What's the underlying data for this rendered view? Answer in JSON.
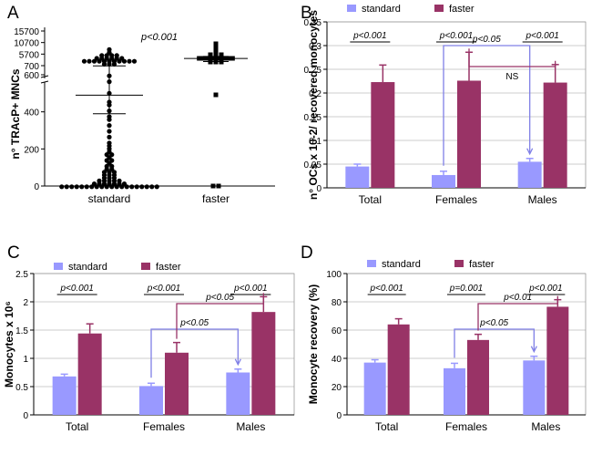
{
  "colors": {
    "standard": "#9999FF",
    "faster": "#993366",
    "blue_bracket": "#8080E6",
    "purple_bracket": "#993366"
  },
  "chart_data": [
    {
      "panel": "A",
      "type": "scatter",
      "ylabel": "n° TRAcP+ MNCs",
      "categories": [
        "standard",
        "faster"
      ],
      "annotation": "p<0.001",
      "y_ticks_lower": [
        "0",
        "200",
        "400",
        "600"
      ],
      "y_ticks_upper": [
        "700",
        "5700",
        "10700",
        "15700"
      ],
      "y_break": [
        600,
        700
      ],
      "standard_mean": 490,
      "standard_sd": [
        390,
        605
      ],
      "faster_mean": 3800,
      "faster_sd": [
        2500,
        4700
      ],
      "standard_points": [
        2,
        2,
        2,
        2,
        2,
        2,
        2,
        2,
        2,
        2,
        2,
        2,
        2,
        2,
        2,
        2,
        2,
        2,
        2,
        2,
        5,
        5,
        5,
        10,
        10,
        15,
        15,
        20,
        20,
        25,
        30,
        35,
        40,
        45,
        50,
        55,
        60,
        65,
        70,
        75,
        80,
        90,
        95,
        100,
        110,
        120,
        130,
        140,
        150,
        165,
        175,
        190,
        200,
        215,
        230,
        260,
        290,
        320,
        360,
        380,
        400,
        430,
        460,
        500,
        560,
        600,
        800,
        1200,
        1800,
        2000,
        2400,
        2600,
        2800,
        3000,
        3000,
        3000,
        3000,
        3000,
        3000,
        3200,
        3400,
        3600,
        3800,
        4000,
        4200,
        4400,
        4600,
        4800,
        5000,
        5500,
        6500,
        7200
      ],
      "faster_points": [
        0,
        0,
        500,
        2000,
        2500,
        3000,
        3200,
        3400,
        3500,
        3600,
        3700,
        3800,
        3900,
        4000,
        4100,
        4200,
        4300,
        4500,
        4700,
        5000,
        6000,
        7500,
        9000,
        10500
      ]
    },
    {
      "panel": "B",
      "type": "bar",
      "ylabel": "n° OCs x 10-2/ recovered monocytes",
      "categories": [
        "Total",
        "Females",
        "Males"
      ],
      "series": [
        {
          "name": "standard",
          "values": [
            0.045,
            0.027,
            0.055
          ],
          "errors": [
            0.005,
            0.008,
            0.007
          ]
        },
        {
          "name": "faster",
          "values": [
            0.223,
            0.226,
            0.222
          ],
          "errors": [
            0.036,
            0.06,
            0.038
          ]
        }
      ],
      "ylim": [
        0,
        0.35
      ],
      "y_ticks": [
        "0",
        "0.05",
        "0.1",
        "0.15",
        "0.2",
        "0.25",
        "0.3",
        "0.35"
      ],
      "annotations": [
        {
          "text": "p<0.001",
          "series_pair": "Total"
        },
        {
          "text": "p<0.001",
          "series_pair": "Females"
        },
        {
          "text": "p<0.001",
          "series_pair": "Males"
        },
        {
          "text": "p<0.05",
          "compare": "Females-standard vs Males-standard",
          "color": "blue"
        },
        {
          "text": "NS",
          "compare": "Females-faster vs Males-faster",
          "color": "purple"
        }
      ]
    },
    {
      "panel": "C",
      "type": "bar",
      "ylabel": "Monocytes x 10⁶",
      "categories": [
        "Total",
        "Females",
        "Males"
      ],
      "series": [
        {
          "name": "standard",
          "values": [
            0.68,
            0.51,
            0.75
          ],
          "errors": [
            0.04,
            0.05,
            0.06
          ]
        },
        {
          "name": "faster",
          "values": [
            1.44,
            1.1,
            1.82
          ],
          "errors": [
            0.17,
            0.18,
            0.27
          ]
        }
      ],
      "ylim": [
        0,
        2.5
      ],
      "y_ticks": [
        "0",
        "0.5",
        "1",
        "1.5",
        "2",
        "2.5"
      ],
      "annotations": [
        {
          "text": "p<0.001",
          "series_pair": "Total"
        },
        {
          "text": "p<0.001",
          "series_pair": "Females"
        },
        {
          "text": "p<0.001",
          "series_pair": "Males"
        },
        {
          "text": "p<0.05",
          "compare": "Females-standard vs Males-standard",
          "color": "blue"
        },
        {
          "text": "p<0.05",
          "compare": "Females-faster vs Males-faster",
          "color": "purple"
        }
      ]
    },
    {
      "panel": "D",
      "type": "bar",
      "ylabel": "Monocyte recovery (%)",
      "categories": [
        "Total",
        "Females",
        "Males"
      ],
      "series": [
        {
          "name": "standard",
          "values": [
            37,
            33,
            38.5
          ],
          "errors": [
            2,
            3.5,
            3
          ]
        },
        {
          "name": "faster",
          "values": [
            64,
            53,
            76.5
          ],
          "errors": [
            4,
            4,
            5
          ]
        }
      ],
      "ylim": [
        0,
        100
      ],
      "y_ticks": [
        "0",
        "20",
        "40",
        "60",
        "80",
        "100"
      ],
      "annotations": [
        {
          "text": "p<0.001",
          "series_pair": "Total"
        },
        {
          "text": "p=0.001",
          "series_pair": "Females"
        },
        {
          "text": "p<0.001",
          "series_pair": "Males"
        },
        {
          "text": "p<0.05",
          "compare": "Females-standard vs Males-standard",
          "color": "blue"
        },
        {
          "text": "p<0.01",
          "compare": "Females-faster vs Males-faster",
          "color": "purple"
        }
      ]
    }
  ]
}
